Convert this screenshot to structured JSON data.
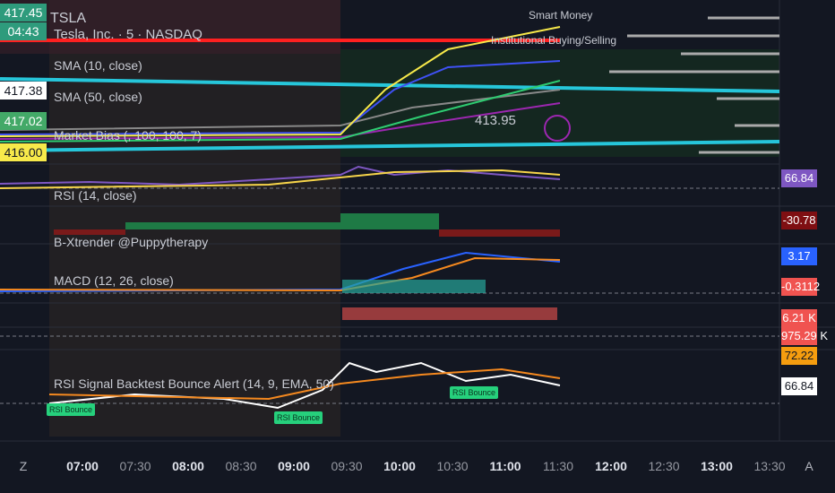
{
  "header": {
    "symbol": "TSLA",
    "description": "Tesla, Inc. · 5 · NASDAQ"
  },
  "price_tags": [
    {
      "text": "417.45",
      "bg": "#2e9b7c",
      "fg": "#ffffff"
    },
    {
      "text": "04:43",
      "bg": "#2e9b7c",
      "fg": "#ffffff"
    },
    {
      "text": "417.38",
      "bg": "#ffffff",
      "fg": "#131722"
    },
    {
      "text": "417.02",
      "bg": "#43a968",
      "fg": "#ffffff"
    },
    {
      "text": "416.00",
      "bg": "#f7e94a",
      "fg": "#131722"
    }
  ],
  "indicators": [
    "SMA (10, close)",
    "SMA (50, close)",
    "Market Bias (, 100, 100, 7)",
    "RSI (14, close)",
    "B-Xtrender @Puppytherapy",
    "MACD (12, 26, close)",
    "RSI Signal Backtest Bounce Alert (14, 9, EMA, 50)"
  ],
  "annotations": {
    "smart_money": "Smart Money",
    "institutional": "Institutional Buying/Selling",
    "price": "413.95",
    "bounces": [
      "RSI Bounce",
      "RSI Bounce",
      "RSI Bounce"
    ]
  },
  "right_labels": [
    {
      "text": "66.84",
      "bg": "#7e57c2",
      "fg": "#ffffff"
    },
    {
      "text": "-30.78",
      "bg": "#7f0f12",
      "fg": "#ffffff"
    },
    {
      "text": "3.17",
      "bg": "#2962ff",
      "fg": "#ffffff"
    },
    {
      "text": "-0.3112",
      "bg": "#f05350",
      "fg": "#ffffff"
    },
    {
      "text": "6.21 K",
      "bg": "#f05350",
      "fg": "#ffffff"
    },
    {
      "text": "975.29 K",
      "bg": "#f05350",
      "fg": "#ffffff"
    },
    {
      "text": "72.22",
      "bg": "#f59d0f",
      "fg": "#131722"
    },
    {
      "text": "66.84",
      "bg": "#ffffff",
      "fg": "#131722"
    }
  ],
  "time_axis": [
    {
      "label": "07:00",
      "bold": true
    },
    {
      "label": "07:30",
      "bold": false
    },
    {
      "label": "08:00",
      "bold": true
    },
    {
      "label": "08:30",
      "bold": false
    },
    {
      "label": "09:00",
      "bold": true
    },
    {
      "label": "09:30",
      "bold": false
    },
    {
      "label": "10:00",
      "bold": true
    },
    {
      "label": "10:30",
      "bold": false
    },
    {
      "label": "11:00",
      "bold": true
    },
    {
      "label": "11:30",
      "bold": false
    },
    {
      "label": "12:00",
      "bold": true
    },
    {
      "label": "12:30",
      "bold": false
    },
    {
      "label": "13:00",
      "bold": true
    },
    {
      "label": "13:30",
      "bold": false
    }
  ],
  "buttons": [
    "Z",
    "A"
  ]
}
